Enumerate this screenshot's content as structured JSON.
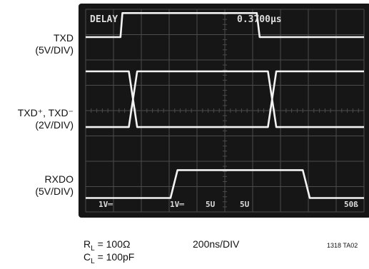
{
  "chart_data": {
    "type": "line",
    "title": "",
    "x_divisions": 10,
    "y_divisions": 8,
    "timebase": "200ns/DIV",
    "readout": {
      "top_left": "DELAY",
      "top_right": "0.3700µs",
      "bottom": [
        "1V═",
        "1V═",
        "5U",
        "5U",
        "50ß"
      ]
    },
    "series": [
      {
        "name_lines": [
          "TXD",
          "(5V/DIV)"
        ],
        "kind": "single",
        "baseline_div": 6.9,
        "high_div": 7.85,
        "points": [
          [
            0,
            0
          ],
          [
            1.25,
            0
          ],
          [
            1.32,
            1
          ],
          [
            6.15,
            1
          ],
          [
            6.25,
            0
          ],
          [
            10,
            0
          ]
        ]
      },
      {
        "name_lines": [
          "TXD⁺, TXD⁻",
          "(2V/DIV)"
        ],
        "kind": "differential",
        "baseline_div": 3.35,
        "high_div": 5.55,
        "points": [
          [
            0,
            1
          ],
          [
            1.55,
            1
          ],
          [
            1.85,
            0
          ],
          [
            6.55,
            0
          ],
          [
            6.85,
            1
          ],
          [
            10,
            1
          ]
        ]
      },
      {
        "name_lines": [
          "RXDO",
          "(5V/DIV)"
        ],
        "kind": "single",
        "baseline_div": 0.55,
        "high_div": 1.65,
        "points": [
          [
            0,
            0
          ],
          [
            3.05,
            0
          ],
          [
            3.3,
            1
          ],
          [
            7.8,
            1
          ],
          [
            8.05,
            0
          ],
          [
            10,
            0
          ]
        ]
      }
    ],
    "conditions": {
      "rl_main": "R",
      "rl_sub": "L",
      "rl_value": " = 100Ω",
      "cl_main": "C",
      "cl_sub": "L",
      "cl_value": " = 100pF"
    },
    "figure_code": "1318 TA02"
  },
  "colors": {
    "screen": "#161616",
    "grid": "#4c4c4c",
    "trace": "#f3f3f3"
  }
}
